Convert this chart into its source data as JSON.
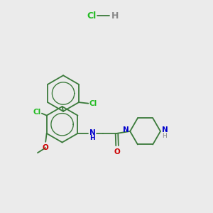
{
  "background_color": "#ebebeb",
  "bond_color": "#3a7a3a",
  "bond_width": 1.3,
  "atom_colors": {
    "N": "#0000cc",
    "O": "#cc0000",
    "Cl": "#22bb22",
    "H": "#888888"
  },
  "figsize": [
    3.0,
    3.0
  ],
  "dpi": 100
}
